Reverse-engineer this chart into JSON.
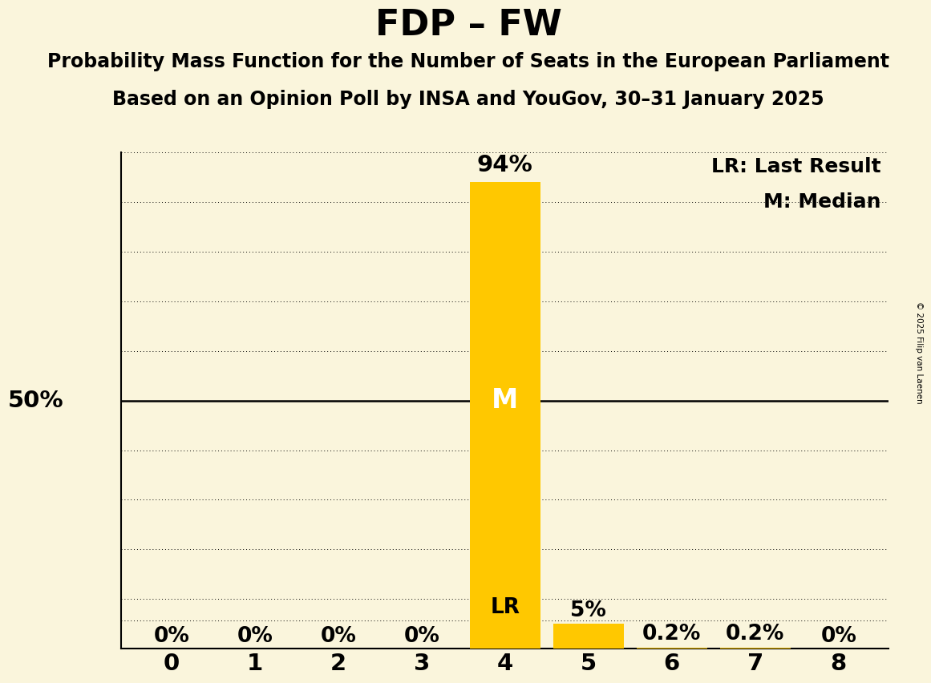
{
  "title": "FDP – FW",
  "subtitle1": "Probability Mass Function for the Number of Seats in the European Parliament",
  "subtitle2": "Based on an Opinion Poll by INSA and YouGov, 30–31 January 2025",
  "copyright": "© 2025 Filip van Laenen",
  "categories": [
    0,
    1,
    2,
    3,
    4,
    5,
    6,
    7,
    8
  ],
  "values": [
    0.0,
    0.0,
    0.0,
    0.0,
    0.94,
    0.05,
    0.002,
    0.002,
    0.0
  ],
  "bar_color": "#FFC800",
  "background_color": "#FAF5DC",
  "median_seat": 4,
  "lr_seat": 4,
  "legend_lr": "LR: Last Result",
  "legend_m": "M: Median",
  "lr_label": "LR",
  "m_label": "M",
  "label_50_text": "50%",
  "ylim": [
    0,
    1.0
  ],
  "yticks": [
    0.0,
    0.1,
    0.2,
    0.3,
    0.4,
    0.5,
    0.6,
    0.7,
    0.8,
    0.9,
    1.0
  ],
  "bar_labels": [
    "0%",
    "0%",
    "0%",
    "0%",
    "94%",
    "5%",
    "0.2%",
    "0.2%",
    "0%"
  ],
  "title_fontsize": 32,
  "subtitle_fontsize": 17,
  "tick_fontsize": 21,
  "label_fontsize": 19,
  "legend_fontsize": 18
}
